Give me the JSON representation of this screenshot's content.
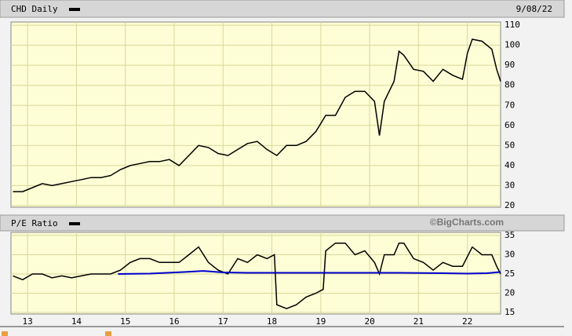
{
  "chart_data": [
    {
      "type": "line",
      "title": "CHD Daily",
      "date": "9/08/22",
      "xlim": [
        12.66,
        22.68
      ],
      "xticks": [
        13,
        14,
        15,
        16,
        17,
        18,
        19,
        20,
        21,
        22
      ],
      "ylim": [
        19.2,
        111.6
      ],
      "yticks": [
        20,
        30,
        40,
        50,
        60,
        70,
        80,
        90,
        100,
        110
      ],
      "grid": true,
      "series": [
        {
          "color": "#000000",
          "x": [
            12.7,
            12.9,
            13.1,
            13.3,
            13.5,
            13.7,
            13.9,
            14.1,
            14.3,
            14.5,
            14.7,
            14.9,
            15.1,
            15.3,
            15.5,
            15.7,
            15.9,
            16.1,
            16.3,
            16.5,
            16.7,
            16.9,
            17.1,
            17.3,
            17.5,
            17.7,
            17.9,
            18.1,
            18.3,
            18.5,
            18.7,
            18.9,
            19.1,
            19.3,
            19.5,
            19.7,
            19.9,
            20.1,
            20.2,
            20.3,
            20.5,
            20.6,
            20.7,
            20.9,
            21.1,
            21.3,
            21.5,
            21.7,
            21.9,
            22.0,
            22.1,
            22.3,
            22.5,
            22.6,
            22.68
          ],
          "values": [
            27,
            27,
            29,
            31,
            30,
            31,
            32,
            33,
            34,
            34,
            35,
            38,
            40,
            41,
            42,
            42,
            43,
            40,
            45,
            50,
            49,
            46,
            45,
            48,
            51,
            52,
            48,
            45,
            50,
            50,
            52,
            57,
            65,
            65,
            74,
            77,
            77,
            72,
            55,
            72,
            82,
            97,
            95,
            88,
            87,
            82,
            88,
            85,
            83,
            96,
            103,
            102,
            98,
            88,
            82
          ]
        }
      ]
    },
    {
      "type": "line",
      "title": "P/E Ratio",
      "source": "©BigCharts.com",
      "xlim": [
        12.66,
        22.68
      ],
      "xticks": [
        13,
        14,
        15,
        16,
        17,
        18,
        19,
        20,
        21,
        22
      ],
      "ylim": [
        14.6,
        35.8
      ],
      "yticks": [
        15,
        20,
        25,
        30,
        35
      ],
      "grid": true,
      "series": [
        {
          "color": "#000000",
          "x": [
            12.7,
            12.9,
            13.1,
            13.3,
            13.5,
            13.7,
            13.9,
            14.1,
            14.3,
            14.5,
            14.7,
            14.9,
            15.1,
            15.3,
            15.5,
            15.7,
            15.9,
            16.1,
            16.3,
            16.5,
            16.7,
            16.9,
            17.1,
            17.3,
            17.5,
            17.7,
            17.9,
            18.05,
            18.1,
            18.3,
            18.5,
            18.7,
            18.9,
            19.05,
            19.1,
            19.3,
            19.5,
            19.7,
            19.9,
            20.1,
            20.2,
            20.3,
            20.5,
            20.6,
            20.7,
            20.9,
            21.1,
            21.3,
            21.5,
            21.7,
            21.9,
            22.1,
            22.3,
            22.5,
            22.6,
            22.68
          ],
          "values": [
            24.5,
            23.5,
            25,
            25,
            24,
            24.5,
            24,
            24.5,
            25,
            25,
            25,
            26,
            28,
            29,
            29,
            28,
            28,
            28,
            30,
            32,
            28,
            26,
            25,
            29,
            28,
            30,
            29,
            30,
            17,
            16,
            17,
            19,
            20,
            21,
            31,
            33,
            33,
            30,
            31,
            28,
            25,
            30,
            30,
            33,
            33,
            29,
            28,
            26,
            28,
            27,
            27,
            32,
            30,
            30,
            27,
            25
          ]
        },
        {
          "color": "#0000cc",
          "x": [
            14.85,
            15.5,
            16.2,
            16.6,
            17.0,
            17.5,
            18.5,
            19.5,
            20.5,
            21.5,
            22.0,
            22.4,
            22.68
          ],
          "values": [
            25,
            25.1,
            25.5,
            25.8,
            25.4,
            25.3,
            25.3,
            25.3,
            25.3,
            25.2,
            25.1,
            25.2,
            25.5
          ]
        }
      ]
    }
  ]
}
